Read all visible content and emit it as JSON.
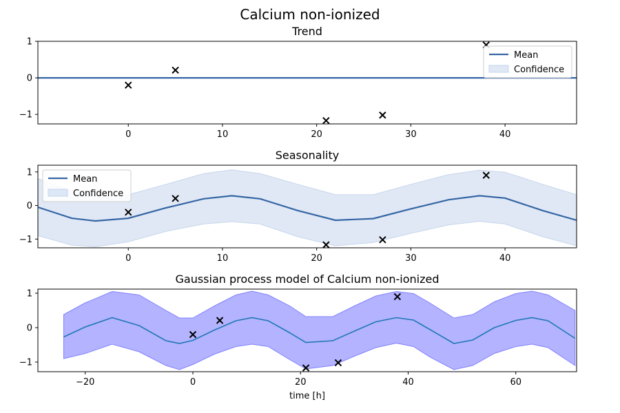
{
  "figure": {
    "title": "Calcium non-ionized"
  },
  "colors": {
    "mean_line": "#3465a4",
    "confidence_fill": "#c6d5ec",
    "gp_line": "#1f77b4",
    "gp_fill": "#8080ff",
    "marker": "#000000"
  },
  "chart_data": [
    {
      "type": "line",
      "title": "Trend",
      "xlabel": "",
      "ylabel": "",
      "xlim": [
        -9.6,
        47.6
      ],
      "ylim": [
        -1.26,
        1.0
      ],
      "xticks": [
        0,
        10,
        20,
        30,
        40
      ],
      "yticks": [
        -1,
        0,
        1
      ],
      "grid": false,
      "legend": {
        "position": "top-right",
        "entries": [
          "Mean",
          "Confidence"
        ]
      },
      "mean": {
        "x": [
          -9.6,
          47.6
        ],
        "y": [
          0.0,
          0.0
        ]
      },
      "confidence": {
        "x": [
          -9.6,
          47.6
        ],
        "lower": [
          0.0,
          0.0
        ],
        "upper": [
          0.0,
          0.0
        ]
      },
      "observations": {
        "x": [
          0,
          5,
          21,
          27,
          38
        ],
        "y": [
          -0.2,
          0.21,
          -1.17,
          -1.02,
          0.9
        ]
      }
    },
    {
      "type": "line",
      "title": "Seasonality",
      "xlabel": "",
      "ylabel": "",
      "xlim": [
        -9.6,
        47.6
      ],
      "ylim": [
        -1.26,
        1.2
      ],
      "xticks": [
        0,
        10,
        20,
        30,
        40
      ],
      "yticks": [
        -1,
        0,
        1
      ],
      "grid": false,
      "legend": {
        "position": "top-left",
        "entries": [
          "Mean",
          "Confidence"
        ]
      },
      "mean": {
        "x": [
          -9.6,
          -6,
          -3.5,
          0,
          4,
          8,
          11,
          14,
          18,
          22,
          26,
          30,
          34,
          37.3,
          40,
          44,
          47.6
        ],
        "y": [
          -0.05,
          -0.38,
          -0.46,
          -0.38,
          -0.07,
          0.2,
          0.29,
          0.2,
          -0.15,
          -0.44,
          -0.39,
          -0.1,
          0.17,
          0.29,
          0.22,
          -0.15,
          -0.44
        ]
      },
      "confidence": {
        "x": [
          -9.6,
          -6,
          -3.5,
          0,
          4,
          8,
          11,
          14,
          18,
          22,
          26,
          30,
          34,
          37.3,
          40,
          44,
          47.6
        ],
        "lower": [
          -0.9,
          -1.18,
          -1.23,
          -1.08,
          -0.77,
          -0.55,
          -0.48,
          -0.55,
          -0.93,
          -1.2,
          -1.1,
          -0.83,
          -0.58,
          -0.47,
          -0.55,
          -0.93,
          -1.2
        ],
        "upper": [
          0.8,
          0.42,
          0.31,
          0.32,
          0.63,
          0.95,
          1.06,
          0.95,
          0.63,
          0.32,
          0.32,
          0.63,
          0.92,
          1.05,
          0.99,
          0.63,
          0.32
        ]
      },
      "observations": {
        "x": [
          0,
          5,
          21,
          27,
          38
        ],
        "y": [
          -0.2,
          0.21,
          -1.17,
          -1.02,
          0.9
        ]
      }
    },
    {
      "type": "line",
      "title": "Gaussian process model of Calcium non-ionized",
      "xlabel": "time [h]",
      "ylabel": "",
      "xlim": [
        -28.8,
        71.3
      ],
      "ylim": [
        -1.28,
        1.12
      ],
      "xticks": [
        -20,
        0,
        20,
        40,
        60
      ],
      "yticks": [
        -1,
        0,
        1
      ],
      "grid": false,
      "legend": null,
      "mean": {
        "x": [
          -24,
          -20,
          -15,
          -10,
          -5,
          -2.5,
          0,
          4,
          8,
          11,
          14,
          18,
          21,
          26,
          30,
          34,
          37.8,
          41,
          44,
          48.5,
          52,
          56,
          60,
          63,
          66,
          71
        ],
        "y": [
          -0.27,
          0.02,
          0.29,
          0.06,
          -0.38,
          -0.46,
          -0.37,
          -0.07,
          0.2,
          0.29,
          0.2,
          -0.15,
          -0.43,
          -0.38,
          -0.1,
          0.17,
          0.29,
          0.22,
          -0.05,
          -0.46,
          -0.36,
          0.0,
          0.21,
          0.29,
          0.2,
          -0.31
        ]
      },
      "confidence": {
        "x": [
          -24,
          -20,
          -15,
          -10,
          -5,
          -2.5,
          0,
          4,
          8,
          11,
          14,
          18,
          21,
          26,
          30,
          34,
          37.8,
          41,
          44,
          48.5,
          52,
          56,
          60,
          63,
          66,
          71
        ],
        "lower": [
          -0.9,
          -0.75,
          -0.48,
          -0.7,
          -1.1,
          -1.22,
          -1.07,
          -0.77,
          -0.55,
          -0.48,
          -0.55,
          -0.93,
          -1.2,
          -1.1,
          -0.83,
          -0.58,
          -0.45,
          -0.55,
          -0.85,
          -1.22,
          -1.1,
          -0.75,
          -0.55,
          -0.48,
          -0.58,
          -1.1
        ],
        "upper": [
          0.38,
          0.72,
          1.05,
          0.95,
          0.5,
          0.28,
          0.28,
          0.63,
          0.95,
          1.06,
          0.95,
          0.63,
          0.32,
          0.32,
          0.63,
          0.92,
          1.05,
          0.99,
          0.72,
          0.28,
          0.38,
          0.75,
          0.99,
          1.06,
          0.95,
          0.5
        ]
      },
      "observations": {
        "x": [
          0,
          5,
          21,
          27,
          38
        ],
        "y": [
          -0.2,
          0.21,
          -1.17,
          -1.02,
          0.9
        ]
      }
    }
  ]
}
